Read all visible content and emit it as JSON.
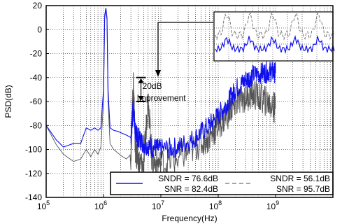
{
  "chart_data": {
    "type": "line",
    "xlabel": "Frequency(Hz)",
    "ylabel": "PSD(dB)",
    "xscale": "log",
    "xlim": [
      100000,
      10000000000
    ],
    "ylim": [
      -140,
      20
    ],
    "x_ticks": [
      {
        "value": 100000,
        "base": "10",
        "exp": "5"
      },
      {
        "value": 1000000,
        "base": "10",
        "exp": "6"
      },
      {
        "value": 10000000,
        "base": "10",
        "exp": "7"
      },
      {
        "value": 100000000,
        "base": "10",
        "exp": "8"
      },
      {
        "value": 1000000000,
        "base": "10",
        "exp": "9"
      }
    ],
    "y_ticks": [
      -140,
      -120,
      -100,
      -80,
      -60,
      -40,
      -20,
      0,
      20
    ],
    "grid": true,
    "series": [
      {
        "name": "SNDR = 76.6dB / SNR = 82.4dB",
        "color": "#1010ee",
        "dash": "solid",
        "points": [
          [
            100000,
            -80
          ],
          [
            150000,
            -92
          ],
          [
            200000,
            -98
          ],
          [
            300000,
            -95
          ],
          [
            400000,
            -95
          ],
          [
            500000,
            -82
          ],
          [
            600000,
            -84
          ],
          [
            700000,
            -82
          ],
          [
            800000,
            -84
          ],
          [
            900000,
            -82
          ],
          [
            1000000,
            -50
          ],
          [
            1050000,
            12
          ],
          [
            1100000,
            18
          ],
          [
            1150000,
            10
          ],
          [
            1200000,
            -50
          ],
          [
            1300000,
            -82
          ],
          [
            1500000,
            -84
          ],
          [
            1800000,
            -85
          ],
          [
            2000000,
            -86
          ],
          [
            2500000,
            -88
          ],
          [
            3000000,
            -90
          ],
          [
            3300000,
            -65
          ],
          [
            3600000,
            -86
          ],
          [
            4000000,
            -90
          ],
          [
            5000000,
            -95
          ],
          [
            7000000,
            -98
          ],
          [
            10000000,
            -100
          ],
          [
            20000000,
            -98
          ],
          [
            40000000,
            -90
          ],
          [
            70000000,
            -80
          ],
          [
            100000000,
            -72
          ],
          [
            150000000,
            -60
          ],
          [
            200000000,
            -50
          ],
          [
            300000000,
            -42
          ],
          [
            400000000,
            -38
          ],
          [
            600000000,
            -36
          ],
          [
            800000000,
            -35
          ],
          [
            1000000000,
            -36
          ]
        ]
      },
      {
        "name": "SNDR = 56.1dB / SNR = 95.7dB",
        "color": "#555555",
        "dash": "dashed",
        "points": [
          [
            100000,
            -80
          ],
          [
            150000,
            -96
          ],
          [
            200000,
            -104
          ],
          [
            300000,
            -110
          ],
          [
            400000,
            -108
          ],
          [
            500000,
            -100
          ],
          [
            600000,
            -106
          ],
          [
            700000,
            -100
          ],
          [
            800000,
            -104
          ],
          [
            900000,
            -98
          ],
          [
            1000000,
            -60
          ],
          [
            1050000,
            10
          ],
          [
            1100000,
            16
          ],
          [
            1150000,
            8
          ],
          [
            1200000,
            -60
          ],
          [
            1300000,
            -95
          ],
          [
            1500000,
            -100
          ],
          [
            2000000,
            -105
          ],
          [
            2500000,
            -108
          ],
          [
            3000000,
            -104
          ],
          [
            3300000,
            -40
          ],
          [
            3600000,
            -100
          ],
          [
            4000000,
            -110
          ],
          [
            5000000,
            -115
          ],
          [
            6000000,
            -55
          ],
          [
            7000000,
            -110
          ],
          [
            10000000,
            -112
          ],
          [
            20000000,
            -108
          ],
          [
            40000000,
            -98
          ],
          [
            70000000,
            -90
          ],
          [
            100000000,
            -80
          ],
          [
            150000000,
            -70
          ],
          [
            200000000,
            -62
          ],
          [
            300000000,
            -56
          ],
          [
            400000000,
            -54
          ],
          [
            600000000,
            -58
          ],
          [
            800000000,
            -62
          ],
          [
            1000000000,
            -66
          ]
        ]
      }
    ],
    "annotation": {
      "line1": "20dB",
      "line2": "Improvement",
      "x": 4500000,
      "y_top": -40,
      "y_bottom": -60
    },
    "legend": {
      "placement": "bottom-right",
      "entries": [
        {
          "sndr": "SNDR = 76.6dB",
          "snr": "SNR = 82.4dB",
          "color": "#1010ee",
          "dash": "solid"
        },
        {
          "sndr": "SNDR = 56.1dB",
          "snr": "SNR = 95.7dB",
          "color": "#888888",
          "dash": "dashed"
        }
      ]
    },
    "inset": {
      "placement": "top-right"
    }
  }
}
